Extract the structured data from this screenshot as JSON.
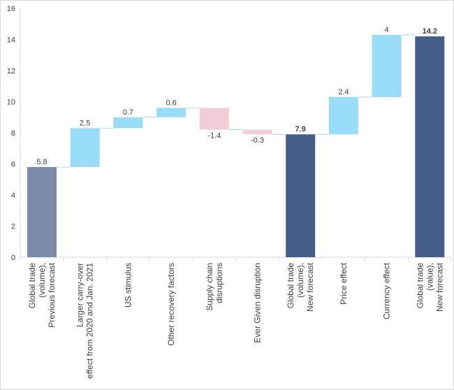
{
  "chart_data": {
    "type": "waterfall",
    "title": "",
    "xlabel": "",
    "ylabel": "",
    "ylim": [
      0,
      16
    ],
    "yticks": [
      0,
      2,
      4,
      6,
      8,
      10,
      12,
      14,
      16
    ],
    "grid": false,
    "legend": "none",
    "categories": [
      [
        "Global trade",
        "(volume),",
        "Previous forecast"
      ],
      [
        "Larger carry-over",
        "effect from 2020 and Jan. 2021"
      ],
      [
        "US stimulus"
      ],
      [
        "Other recovery factors"
      ],
      [
        "Supply chain",
        "disruptions"
      ],
      [
        "Ever Given disruption"
      ],
      [
        "Global trade",
        "(volume),",
        "New forecast"
      ],
      [
        "Price effect"
      ],
      [
        "Currency effect"
      ],
      [
        "Global trade",
        "(value),",
        "New forecast"
      ]
    ],
    "steps": [
      {
        "kind": "total",
        "value": 5.8,
        "label": "5.8",
        "color": "#7a8aa8",
        "bold": false
      },
      {
        "kind": "delta",
        "value": 2.5,
        "label": "2.5",
        "color": "#99dcf7"
      },
      {
        "kind": "delta",
        "value": 0.7,
        "label": "0.7",
        "color": "#99dcf7"
      },
      {
        "kind": "delta",
        "value": 0.6,
        "label": "0.6",
        "color": "#99dcf7"
      },
      {
        "kind": "delta",
        "value": -1.4,
        "label": "-1.4",
        "color": "#f2cdd6"
      },
      {
        "kind": "delta",
        "value": -0.3,
        "label": "-0.3",
        "color": "#f2cdd6"
      },
      {
        "kind": "total",
        "value": 7.9,
        "label": "7.9",
        "color": "#445e89",
        "bold": true
      },
      {
        "kind": "delta",
        "value": 2.4,
        "label": "2.4",
        "color": "#99dcf7"
      },
      {
        "kind": "delta",
        "value": 4.0,
        "label": "4",
        "color": "#99dcf7"
      },
      {
        "kind": "total",
        "value": 14.2,
        "label": "14.2",
        "color": "#445e89",
        "bold": true
      }
    ],
    "colors": {
      "increase": "#99dcf7",
      "decrease": "#f2cdd6",
      "total_previous": "#7a8aa8",
      "total_new": "#445e89",
      "connector": "#a8d8ee"
    }
  }
}
